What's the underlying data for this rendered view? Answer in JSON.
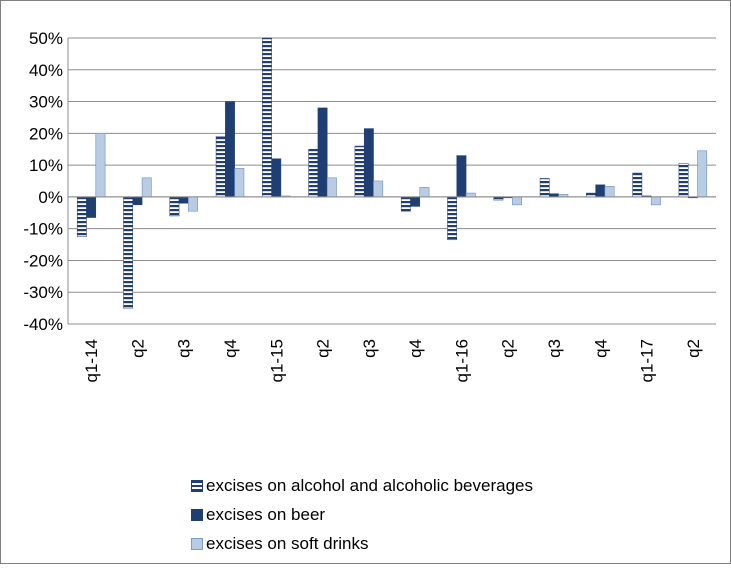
{
  "chart_data": {
    "type": "bar",
    "categories": [
      "q1-14",
      "q2",
      "q3",
      "q4",
      "q1-15",
      "q2",
      "q3",
      "q4",
      "q1-16",
      "q2",
      "q3",
      "q4",
      "q1-17",
      "q2"
    ],
    "ylim": [
      -40,
      50
    ],
    "yticks": [
      -40,
      -30,
      -20,
      -10,
      0,
      10,
      20,
      30,
      40,
      50
    ],
    "ytick_labels": [
      "-40%",
      "-30%",
      "-20%",
      "-10%",
      "0%",
      "10%",
      "20%",
      "30%",
      "40%",
      "50%"
    ],
    "grid": true,
    "legend_position": "bottom",
    "series": [
      {
        "name": "excises on alcohol and alcoholic beverages",
        "color": "#1f3f73",
        "pattern": "horizontal-stripes",
        "values": [
          -12.5,
          -35,
          -6,
          19,
          50,
          15,
          16,
          -4.5,
          -13.5,
          -1,
          5.8,
          1.2,
          7.5,
          10.5
        ]
      },
      {
        "name": "excises on beer",
        "color": "#1f3f73",
        "pattern": "solid",
        "values": [
          -6.5,
          -2.5,
          -2,
          30,
          12,
          28,
          21.5,
          -3,
          13,
          -0.3,
          1,
          3.8,
          0.3,
          -0.3
        ]
      },
      {
        "name": "excises on soft drinks",
        "color": "#b8cce4",
        "pattern": "solid",
        "values": [
          20,
          6,
          -4.5,
          9,
          0.3,
          6,
          5,
          3,
          1.2,
          -2.5,
          0.8,
          3.3,
          -2.5,
          14.5
        ]
      }
    ]
  }
}
